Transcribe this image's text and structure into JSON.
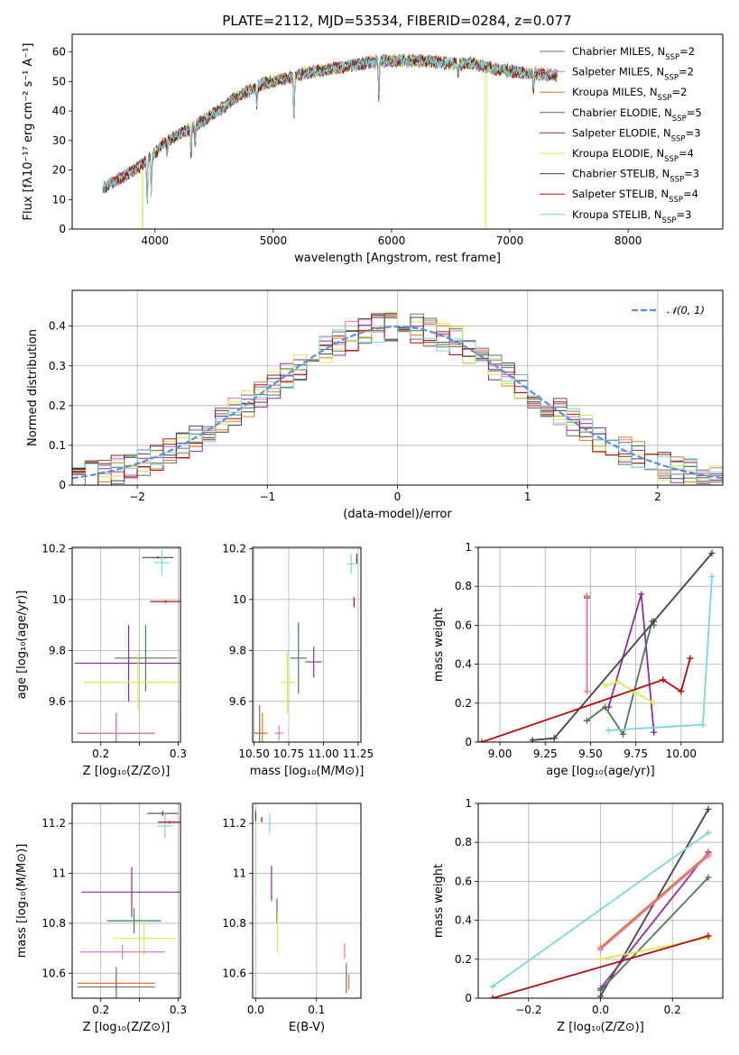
{
  "title": "PLATE=2112, MJD=53534, FIBERID=0284, z=0.077",
  "colors": {
    "Chabrier MILES": "#6f6f6f",
    "Salpeter MILES": "#e377c2",
    "Kroupa MILES": "#e07b1a",
    "Chabrier ELODIE": "#4c7a55",
    "Salpeter ELODIE": "#8e2ca0",
    "Kroupa ELODIE": "#d5ee4a",
    "Chabrier STELIB": "#444444",
    "Salpeter STELIB": "#b01010",
    "Kroupa STELIB": "#7ad6dc",
    "gauss": "#5b8fd8"
  },
  "legend_spectrum": [
    {
      "model": "Chabrier MILES",
      "text": "Chabrier MILES, N",
      "sub": "SSP",
      "tail": "=2"
    },
    {
      "model": "Salpeter MILES",
      "text": "Salpeter MILES, N",
      "sub": "SSP",
      "tail": "=2"
    },
    {
      "model": "Kroupa MILES",
      "text": "Kroupa MILES, N",
      "sub": "SSP",
      "tail": "=2"
    },
    {
      "model": "Chabrier ELODIE",
      "text": "Chabrier ELODIE, N",
      "sub": "SSP",
      "tail": "=5"
    },
    {
      "model": "Salpeter ELODIE",
      "text": "Salpeter ELODIE, N",
      "sub": "SSP",
      "tail": "=3"
    },
    {
      "model": "Kroupa ELODIE",
      "text": "Kroupa ELODIE, N",
      "sub": "SSP",
      "tail": "=4"
    },
    {
      "model": "Chabrier STELIB",
      "text": "Chabrier STELIB, N",
      "sub": "SSP",
      "tail": "=3"
    },
    {
      "model": "Salpeter STELIB",
      "text": "Salpeter STELIB, N",
      "sub": "SSP",
      "tail": "=4"
    },
    {
      "model": "Kroupa STELIB",
      "text": "Kroupa STELIB, N",
      "sub": "SSP",
      "tail": "=3"
    }
  ],
  "chart_data": [
    {
      "id": "spectrum",
      "type": "line",
      "xlabel": "wavelength [Angstrom, rest frame]",
      "ylabel": "Flux [fλ10⁻¹⁷ erg cm⁻² s⁻¹ A⁻¹]",
      "xlim": [
        3300,
        8800
      ],
      "ylim": [
        0,
        66
      ],
      "xticks": [
        4000,
        5000,
        6000,
        7000,
        8000
      ],
      "yticks": [
        0,
        10,
        20,
        30,
        40,
        50,
        60
      ],
      "grid": false,
      "legend": "right",
      "wavelength_range": [
        3560,
        7400
      ],
      "continuum": [
        [
          3560,
          14
        ],
        [
          3700,
          17
        ],
        [
          3900,
          22
        ],
        [
          4000,
          26
        ],
        [
          4100,
          30
        ],
        [
          4300,
          34
        ],
        [
          4500,
          39
        ],
        [
          4700,
          45
        ],
        [
          4900,
          49
        ],
        [
          5100,
          51
        ],
        [
          5300,
          53
        ],
        [
          5600,
          55
        ],
        [
          5900,
          57
        ],
        [
          6100,
          57
        ],
        [
          6300,
          57
        ],
        [
          6500,
          56
        ],
        [
          6700,
          56
        ],
        [
          6900,
          54
        ],
        [
          7100,
          53
        ],
        [
          7400,
          52
        ]
      ],
      "absorption_lines": [
        [
          3934,
          14
        ],
        [
          3969,
          12
        ],
        [
          4102,
          5
        ],
        [
          4305,
          9
        ],
        [
          4340,
          6
        ],
        [
          4861,
          6
        ],
        [
          5175,
          14
        ],
        [
          5893,
          12
        ],
        [
          6563,
          4
        ],
        [
          7200,
          6
        ]
      ],
      "dropouts": [
        {
          "model": "Kroupa ELODIE",
          "x": [
            6790,
            6800
          ]
        },
        {
          "model": "Salpeter STELIB",
          "x": [
            7405,
            7410
          ]
        }
      ]
    },
    {
      "id": "residual-distribution",
      "type": "step",
      "xlabel": "(data-model)/error",
      "ylabel": "Normed distribution",
      "xlim": [
        -2.5,
        2.5
      ],
      "ylim": [
        0,
        0.49
      ],
      "xticks": [
        -2,
        -1,
        0,
        1,
        2
      ],
      "yticks": [
        0.0,
        0.1,
        0.2,
        0.3,
        0.4
      ],
      "grid": true,
      "legend": "top-right",
      "gauss_label": "𝒩(0, 1)",
      "bin_width": 0.1
    },
    {
      "id": "age-vs-z",
      "type": "errorbar",
      "xlabel": "Z [log₁₀(Z/Z⊙)]",
      "ylabel": "age  [log₁₀(age/yr)]",
      "xlim": [
        0.163,
        0.303
      ],
      "ylim": [
        9.44,
        10.205
      ],
      "xticks": [
        0.2,
        0.25,
        0.3
      ],
      "xticklabels": [
        "0.2",
        "",
        "0.3"
      ],
      "yticks": [
        9.6,
        9.8,
        10.0,
        10.2
      ],
      "grid": true,
      "points": [
        {
          "model": "Chabrier STELIB",
          "x": 0.274,
          "y": 10.165,
          "xerr": 0.02,
          "yerr": 0.005
        },
        {
          "model": "Kroupa STELIB",
          "x": 0.279,
          "y": 10.145,
          "xerr": 0.01,
          "yerr": 0.05
        },
        {
          "model": "Salpeter STELIB",
          "x": 0.284,
          "y": 9.992,
          "xerr": 0.02,
          "yerr": 0.005
        },
        {
          "model": "Chabrier ELODIE",
          "x": 0.258,
          "y": 9.77,
          "xerr": 0.04,
          "yerr": 0.13
        },
        {
          "model": "Salpeter ELODIE",
          "x": 0.236,
          "y": 9.75,
          "xerr": 0.07,
          "yerr": 0.15
        },
        {
          "model": "Kroupa ELODIE",
          "x": 0.248,
          "y": 9.675,
          "xerr": 0.07,
          "yerr": 0.11
        },
        {
          "model": "Chabrier MILES",
          "x": 0.22,
          "y": 9.475,
          "xerr": 0.05,
          "yerr": 0.08
        },
        {
          "model": "Kroupa MILES",
          "x": 0.22,
          "y": 9.475,
          "xerr": 0.05,
          "yerr": 0.08
        },
        {
          "model": "Salpeter MILES",
          "x": 0.22,
          "y": 9.475,
          "xerr": 0.05,
          "yerr": 0.08
        }
      ]
    },
    {
      "id": "age-vs-mass",
      "type": "errorbar",
      "xlabel": "mass [log₁₀(M/M⊙)]",
      "ylabel": "",
      "xlim": [
        10.49,
        11.27
      ],
      "ylim": [
        9.44,
        10.205
      ],
      "xticks": [
        10.5,
        10.75,
        11.0,
        11.25
      ],
      "xticklabels": [
        "10.50",
        "10.75",
        "11.00",
        "11.25"
      ],
      "yticks": [
        9.6,
        9.8,
        10.0,
        10.2
      ],
      "grid": true,
      "points": [
        {
          "model": "Chabrier STELIB",
          "x": 11.24,
          "y": 10.16,
          "xerr": 0.005,
          "yerr": 0.02
        },
        {
          "model": "Kroupa STELIB",
          "x": 11.2,
          "y": 10.14,
          "xerr": 0.03,
          "yerr": 0.04
        },
        {
          "model": "Salpeter STELIB",
          "x": 11.22,
          "y": 9.99,
          "xerr": 0.002,
          "yerr": 0.02
        },
        {
          "model": "Salpeter ELODIE",
          "x": 10.93,
          "y": 9.755,
          "xerr": 0.06,
          "yerr": 0.06
        },
        {
          "model": "Chabrier ELODIE",
          "x": 10.82,
          "y": 9.77,
          "xerr": 0.06,
          "yerr": 0.14
        },
        {
          "model": "Kroupa ELODIE",
          "x": 10.74,
          "y": 9.675,
          "xerr": 0.05,
          "yerr": 0.12
        },
        {
          "model": "Chabrier MILES",
          "x": 10.54,
          "y": 9.475,
          "xerr": 0.04,
          "yerr": 0.11
        },
        {
          "model": "Kroupa MILES",
          "x": 10.56,
          "y": 9.475,
          "xerr": 0.04,
          "yerr": 0.08
        },
        {
          "model": "Salpeter MILES",
          "x": 10.68,
          "y": 9.475,
          "xerr": 0.03,
          "yerr": 0.03
        }
      ]
    },
    {
      "id": "mass-weight-vs-age",
      "type": "line",
      "xlabel": "age  [log₁₀(age/yr)]",
      "ylabel": "mass weight",
      "xlim": [
        8.88,
        10.23
      ],
      "ylim": [
        0.0,
        1.0
      ],
      "xticks": [
        9.0,
        9.25,
        9.5,
        9.75,
        10.0
      ],
      "xticklabels": [
        "9.00",
        "9.25",
        "9.50",
        "9.75",
        "10.00"
      ],
      "yticks": [
        0.0,
        0.2,
        0.4,
        0.6,
        0.8,
        1.0
      ],
      "grid": true,
      "series": [
        {
          "model": "Kroupa MILES",
          "x": [
            9.48,
            9.48
          ],
          "y": [
            0.26,
            0.75
          ]
        },
        {
          "model": "Chabrier MILES",
          "x": [
            9.48,
            9.48
          ],
          "y": [
            0.26,
            0.74
          ]
        },
        {
          "model": "Salpeter MILES",
          "x": [
            9.48,
            9.48
          ],
          "y": [
            0.26,
            0.745
          ]
        },
        {
          "model": "Salpeter ELODIE",
          "x": [
            9.6,
            9.78,
            9.85
          ],
          "y": [
            0.18,
            0.76,
            0.05
          ]
        },
        {
          "model": "Chabrier ELODIE",
          "x": [
            9.48,
            9.58,
            9.68,
            9.84,
            9.85
          ],
          "y": [
            0.11,
            0.18,
            0.04,
            0.62,
            0.6
          ]
        },
        {
          "model": "Kroupa ELODIE",
          "x": [
            9.58,
            9.65,
            9.74,
            9.85
          ],
          "y": [
            0.29,
            0.31,
            0.26,
            0.2
          ]
        },
        {
          "model": "Chabrier STELIB",
          "x": [
            9.18,
            9.3,
            9.85,
            10.17
          ],
          "y": [
            0.01,
            0.02,
            0.62,
            0.97
          ]
        },
        {
          "model": "Salpeter STELIB",
          "x": [
            8.9,
            9.9,
            10.0,
            10.05
          ],
          "y": [
            0.0,
            0.32,
            0.26,
            0.43
          ]
        },
        {
          "model": "Kroupa STELIB",
          "x": [
            9.6,
            10.12,
            10.17
          ],
          "y": [
            0.06,
            0.09,
            0.85
          ]
        }
      ]
    },
    {
      "id": "mass-vs-z",
      "type": "errorbar",
      "xlabel": "Z [log₁₀(Z/Z⊙)]",
      "ylabel": "mass [log₁₀(M/M⊙)]",
      "xlim": [
        0.163,
        0.303
      ],
      "ylim": [
        10.5,
        11.28
      ],
      "xticks": [
        0.2,
        0.25,
        0.3
      ],
      "xticklabels": [
        "0.2",
        "",
        "0.3"
      ],
      "yticks": [
        10.6,
        10.8,
        11.0,
        11.2
      ],
      "grid": true,
      "points": [
        {
          "model": "Chabrier STELIB",
          "x": 0.28,
          "y": 11.24,
          "xerr": 0.02,
          "yerr": 0.01
        },
        {
          "model": "Kroupa STELIB",
          "x": 0.283,
          "y": 11.19,
          "xerr": 0.01,
          "yerr": 0.05
        },
        {
          "model": "Salpeter STELIB",
          "x": 0.289,
          "y": 11.205,
          "xerr": 0.015,
          "yerr": 0.005
        },
        {
          "model": "Salpeter ELODIE",
          "x": 0.24,
          "y": 10.925,
          "xerr": 0.065,
          "yerr": 0.1
        },
        {
          "model": "Chabrier ELODIE",
          "x": 0.243,
          "y": 10.81,
          "xerr": 0.035,
          "yerr": 0.05
        },
        {
          "model": "Kroupa ELODIE",
          "x": 0.256,
          "y": 10.74,
          "xerr": 0.04,
          "yerr": 0.07
        },
        {
          "model": "Salpeter MILES",
          "x": 0.228,
          "y": 10.685,
          "xerr": 0.055,
          "yerr": 0.03
        },
        {
          "model": "Kroupa MILES",
          "x": 0.22,
          "y": 10.56,
          "xerr": 0.05,
          "yerr": 0.04
        },
        {
          "model": "Chabrier MILES",
          "x": 0.22,
          "y": 10.545,
          "xerr": 0.05,
          "yerr": 0.08
        }
      ]
    },
    {
      "id": "mass-vs-ebv",
      "type": "errorbar",
      "xlabel": "E(B-V)",
      "ylabel": "",
      "xlim": [
        -0.005,
        0.173
      ],
      "ylim": [
        10.5,
        11.28
      ],
      "xticks": [
        0.0,
        0.1
      ],
      "xticklabels": [
        "0.0",
        "0.1"
      ],
      "yticks": [
        10.6,
        10.8,
        11.0,
        11.2
      ],
      "grid": true,
      "points": [
        {
          "model": "Chabrier STELIB",
          "x": 0.0,
          "y": 11.23,
          "xerr": 0.0005,
          "yerr": 0.02
        },
        {
          "model": "Salpeter STELIB",
          "x": 0.01,
          "y": 11.215,
          "xerr": 0.0005,
          "yerr": 0.01
        },
        {
          "model": "Kroupa STELIB",
          "x": 0.023,
          "y": 11.2,
          "xerr": 0.0005,
          "yerr": 0.04
        },
        {
          "model": "Salpeter ELODIE",
          "x": 0.026,
          "y": 10.96,
          "xerr": 0.0005,
          "yerr": 0.07
        },
        {
          "model": "Chabrier ELODIE",
          "x": 0.035,
          "y": 10.85,
          "xerr": 0.0005,
          "yerr": 0.05
        },
        {
          "model": "Kroupa ELODIE",
          "x": 0.036,
          "y": 10.76,
          "xerr": 0.0005,
          "yerr": 0.08
        },
        {
          "model": "Salpeter MILES",
          "x": 0.146,
          "y": 10.69,
          "xerr": 0.0005,
          "yerr": 0.03
        },
        {
          "model": "Kroupa MILES",
          "x": 0.153,
          "y": 10.565,
          "xerr": 0.0005,
          "yerr": 0.03
        },
        {
          "model": "Chabrier MILES",
          "x": 0.149,
          "y": 10.58,
          "xerr": 0.0005,
          "yerr": 0.06
        }
      ]
    },
    {
      "id": "mass-weight-vs-z",
      "type": "line",
      "xlabel": "Z [log₁₀(Z/Z⊙)]",
      "ylabel": "mass weight",
      "xlim": [
        -0.34,
        0.34
      ],
      "ylim": [
        0.0,
        1.0
      ],
      "xticks": [
        -0.2,
        0.0,
        0.2
      ],
      "xticklabels": [
        "−0.2",
        "0.0",
        "0.2"
      ],
      "yticks": [
        0.0,
        0.2,
        0.4,
        0.6,
        0.8,
        1.0
      ],
      "grid": true,
      "series": [
        {
          "model": "Chabrier STELIB",
          "x": [
            0.0,
            0.3
          ],
          "y": [
            0.01,
            0.97
          ]
        },
        {
          "model": "Kroupa STELIB",
          "x": [
            -0.3,
            0.3
          ],
          "y": [
            0.06,
            0.85
          ]
        },
        {
          "model": "Salpeter ELODIE",
          "x": [
            0.0,
            0.3
          ],
          "y": [
            0.05,
            0.75
          ]
        },
        {
          "model": "Kroupa MILES",
          "x": [
            0.0,
            0.3
          ],
          "y": [
            0.26,
            0.74
          ]
        },
        {
          "model": "Chabrier ELODIE",
          "x": [
            0.0,
            0.3
          ],
          "y": [
            0.04,
            0.62
          ]
        },
        {
          "model": "Kroupa ELODIE",
          "x": [
            0.0,
            0.3
          ],
          "y": [
            0.2,
            0.31
          ]
        },
        {
          "model": "Salpeter STELIB",
          "x": [
            -0.3,
            0.3
          ],
          "y": [
            0.0,
            0.32
          ]
        },
        {
          "model": "Salpeter MILES",
          "x": [
            0.0,
            0.3
          ],
          "y": [
            0.25,
            0.73
          ]
        }
      ]
    }
  ]
}
